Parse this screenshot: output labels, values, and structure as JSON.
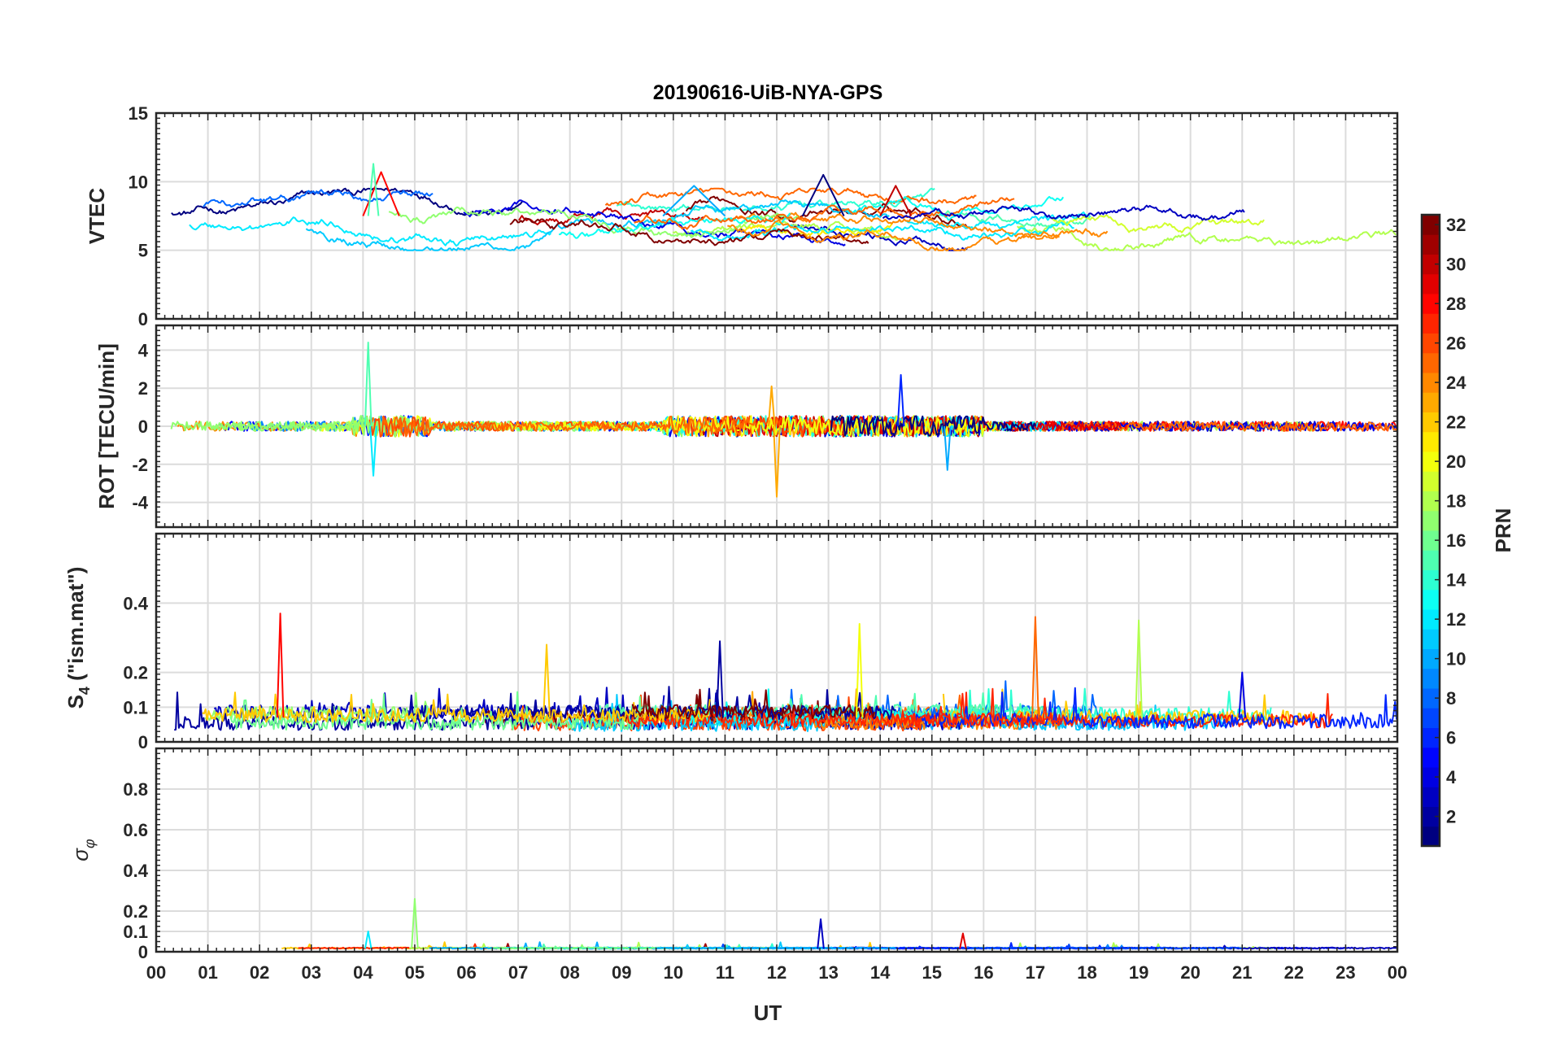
{
  "chart_data": {
    "title": "20190616-UiB-NYA-GPS",
    "type": "line",
    "xlabel": "UT",
    "x_range": [
      0,
      24
    ],
    "x_tick_labels": [
      "00",
      "01",
      "02",
      "03",
      "04",
      "05",
      "06",
      "07",
      "08",
      "09",
      "10",
      "11",
      "12",
      "13",
      "14",
      "15",
      "16",
      "17",
      "18",
      "19",
      "20",
      "21",
      "22",
      "23",
      "00"
    ],
    "grid": true,
    "colormap": "jet",
    "colorbar": {
      "label": "PRN",
      "range": [
        1,
        32
      ],
      "tick_labels": [
        "2",
        "4",
        "6",
        "8",
        "10",
        "12",
        "14",
        "16",
        "18",
        "20",
        "22",
        "24",
        "26",
        "28",
        "30",
        "32"
      ],
      "placement": "right"
    },
    "panels": [
      {
        "id": "vtec",
        "ylabel": "VTEC",
        "ylim": [
          0,
          15
        ],
        "ytick_labels": [
          "0",
          "5",
          "10",
          "15"
        ],
        "features": [
          {
            "prn": 1,
            "from": 12.5,
            "to": 13.3,
            "peak": 10.5
          },
          {
            "prn": 28,
            "from": 4.0,
            "to": 4.7,
            "peak": 10.7
          },
          {
            "prn": 15,
            "from": 4.1,
            "to": 4.3,
            "peak": 11.3
          },
          {
            "prn": 10,
            "from": 9.8,
            "to": 11.0,
            "peak": 9.7
          },
          {
            "prn": 30,
            "from": 14.0,
            "to": 14.6,
            "peak": 9.7
          }
        ]
      },
      {
        "id": "rot",
        "ylabel": "ROT [TECU/min]",
        "ylim": [
          -5.3,
          5.3
        ],
        "ytick_labels": [
          "-4",
          "-2",
          "0",
          "2",
          "4"
        ],
        "features": [
          {
            "prn": 15,
            "t": 4.1,
            "peak": 4.4
          },
          {
            "prn": 12,
            "t": 4.2,
            "peak": -2.6
          },
          {
            "prn": 23,
            "t": 12.0,
            "peak": -3.7
          },
          {
            "prn": 23,
            "t": 11.9,
            "peak": 2.1
          },
          {
            "prn": 6,
            "t": 14.4,
            "peak": 2.7
          },
          {
            "prn": 10,
            "t": 15.3,
            "peak": -2.3
          }
        ]
      },
      {
        "id": "s4",
        "ylabel": "S4 (\"ism.mat\")",
        "ylabel_main": "S",
        "ylabel_sub": "4",
        "ylabel_rest": " (\"ism.mat\")",
        "ylim": [
          0,
          0.6
        ],
        "ytick_labels": [
          "0",
          "0.1",
          "0.2",
          "0.4"
        ],
        "features": [
          {
            "prn": 28,
            "t": 2.4,
            "peak": 0.37
          },
          {
            "prn": 22,
            "t": 7.55,
            "peak": 0.28
          },
          {
            "prn": 2,
            "t": 10.9,
            "peak": 0.29
          },
          {
            "prn": 20,
            "t": 13.6,
            "peak": 0.34
          },
          {
            "prn": 25,
            "t": 17.0,
            "peak": 0.36
          },
          {
            "prn": 18,
            "t": 19.0,
            "peak": 0.35
          },
          {
            "prn": 4,
            "t": 21.0,
            "peak": 0.2
          }
        ]
      },
      {
        "id": "sigphi",
        "ylabel": "σφ",
        "ylabel_main": "σ",
        "ylabel_sub": "φ",
        "ylim": [
          0,
          1
        ],
        "ytick_labels": [
          "0",
          "0.1",
          "0.2",
          "0.4",
          "0.6",
          "0.8"
        ],
        "features": [
          {
            "prn": 17,
            "t": 5.0,
            "peak": 0.26
          },
          {
            "prn": 3,
            "t": 12.85,
            "peak": 0.16
          },
          {
            "prn": 12,
            "t": 4.1,
            "peak": 0.1
          },
          {
            "prn": 29,
            "t": 15.6,
            "peak": 0.09
          }
        ]
      }
    ]
  }
}
